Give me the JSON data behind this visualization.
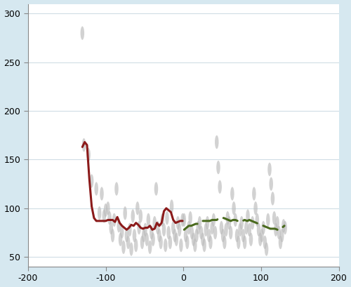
{
  "xlim": [
    -200,
    200
  ],
  "ylim": [
    40,
    310
  ],
  "xticks": [
    -200,
    -100,
    0,
    100,
    200
  ],
  "yticks": [
    50,
    100,
    150,
    200,
    250,
    300
  ],
  "outer_bg": "#d6e8f0",
  "plot_bg": "#ffffff",
  "scatter_color": "#bbbbbb",
  "scatter_alpha": 0.65,
  "red_line_color": "#8b1a1a",
  "green_line_color": "#4a6a1e",
  "red_line_x": [
    -130,
    -127,
    -124,
    -121,
    -118,
    -115,
    -112,
    -109,
    -106,
    -103,
    -100,
    -97,
    -94,
    -91,
    -88,
    -85,
    -82,
    -79,
    -76,
    -73,
    -70,
    -67,
    -64,
    -61,
    -58,
    -55,
    -52,
    -49,
    -46,
    -43,
    -40,
    -37,
    -34,
    -31,
    -28,
    -25,
    -22,
    -19,
    -16,
    -13,
    -10,
    -7,
    -4,
    -1
  ],
  "red_line_y": [
    163,
    168,
    165,
    130,
    102,
    90,
    87,
    87,
    87,
    87,
    87,
    88,
    88,
    88,
    86,
    91,
    85,
    82,
    80,
    78,
    80,
    83,
    82,
    85,
    83,
    80,
    79,
    80,
    80,
    82,
    78,
    79,
    85,
    82,
    85,
    97,
    100,
    98,
    96,
    88,
    85,
    86,
    87,
    87
  ],
  "green_line_x": [
    1,
    4,
    7,
    10,
    13,
    16,
    19,
    22,
    25,
    28,
    31,
    34,
    37,
    40,
    43,
    46,
    49,
    52,
    55,
    58,
    61,
    64,
    67,
    70,
    73,
    76,
    79,
    82,
    85,
    88,
    91,
    94,
    97,
    100,
    103,
    106,
    109,
    112,
    115,
    118,
    121,
    124,
    127,
    130
  ],
  "green_line_y": [
    78,
    80,
    82,
    82,
    83,
    84,
    84,
    86,
    87,
    87,
    87,
    87,
    88,
    88,
    88,
    90,
    90,
    90,
    89,
    88,
    87,
    88,
    88,
    87,
    88,
    87,
    88,
    87,
    88,
    87,
    86,
    85,
    84,
    83,
    82,
    81,
    80,
    79,
    79,
    79,
    78,
    78,
    80,
    82
  ],
  "scatter_points": [
    [
      -130,
      280
    ],
    [
      -128,
      165
    ],
    [
      -122,
      155
    ],
    [
      -118,
      128
    ],
    [
      -112,
      120
    ],
    [
      -108,
      95
    ],
    [
      -105,
      115
    ],
    [
      -102,
      92
    ],
    [
      -100,
      98
    ],
    [
      -97,
      100
    ],
    [
      -95,
      90
    ],
    [
      -93,
      80
    ],
    [
      -91,
      72
    ],
    [
      -89,
      88
    ],
    [
      -86,
      120
    ],
    [
      -83,
      82
    ],
    [
      -81,
      68
    ],
    [
      -79,
      76
    ],
    [
      -77,
      60
    ],
    [
      -75,
      95
    ],
    [
      -73,
      72
    ],
    [
      -71,
      65
    ],
    [
      -69,
      78
    ],
    [
      -67,
      58
    ],
    [
      -65,
      92
    ],
    [
      -63,
      72
    ],
    [
      -61,
      62
    ],
    [
      -59,
      100
    ],
    [
      -57,
      80
    ],
    [
      -55,
      92
    ],
    [
      -53,
      65
    ],
    [
      -51,
      72
    ],
    [
      -49,
      78
    ],
    [
      -47,
      68
    ],
    [
      -45,
      88
    ],
    [
      -43,
      60
    ],
    [
      -41,
      75
    ],
    [
      -39,
      68
    ],
    [
      -37,
      85
    ],
    [
      -35,
      120
    ],
    [
      -33,
      80
    ],
    [
      -31,
      72
    ],
    [
      -29,
      65
    ],
    [
      -27,
      88
    ],
    [
      -25,
      78
    ],
    [
      -23,
      62
    ],
    [
      -21,
      90
    ],
    [
      -19,
      75
    ],
    [
      -17,
      65
    ],
    [
      -15,
      102
    ],
    [
      -13,
      80
    ],
    [
      -11,
      72
    ],
    [
      -9,
      68
    ],
    [
      -7,
      85
    ],
    [
      -5,
      78
    ],
    [
      -3,
      62
    ],
    [
      -1,
      88
    ],
    [
      1,
      88
    ],
    [
      3,
      72
    ],
    [
      5,
      65
    ],
    [
      7,
      80
    ],
    [
      9,
      90
    ],
    [
      11,
      75
    ],
    [
      13,
      68
    ],
    [
      15,
      62
    ],
    [
      17,
      72
    ],
    [
      19,
      80
    ],
    [
      21,
      85
    ],
    [
      23,
      75
    ],
    [
      25,
      68
    ],
    [
      27,
      62
    ],
    [
      29,
      78
    ],
    [
      31,
      85
    ],
    [
      33,
      72
    ],
    [
      35,
      65
    ],
    [
      37,
      80
    ],
    [
      39,
      88
    ],
    [
      41,
      75
    ],
    [
      43,
      168
    ],
    [
      45,
      142
    ],
    [
      47,
      122
    ],
    [
      49,
      80
    ],
    [
      51,
      72
    ],
    [
      53,
      65
    ],
    [
      55,
      78
    ],
    [
      57,
      90
    ],
    [
      59,
      85
    ],
    [
      61,
      75
    ],
    [
      63,
      115
    ],
    [
      65,
      100
    ],
    [
      67,
      88
    ],
    [
      69,
      72
    ],
    [
      71,
      65
    ],
    [
      73,
      78
    ],
    [
      75,
      85
    ],
    [
      77,
      72
    ],
    [
      79,
      65
    ],
    [
      81,
      80
    ],
    [
      83,
      92
    ],
    [
      85,
      78
    ],
    [
      87,
      68
    ],
    [
      89,
      85
    ],
    [
      91,
      115
    ],
    [
      93,
      100
    ],
    [
      95,
      88
    ],
    [
      97,
      78
    ],
    [
      99,
      68
    ],
    [
      101,
      72
    ],
    [
      103,
      80
    ],
    [
      105,
      65
    ],
    [
      107,
      58
    ],
    [
      109,
      88
    ],
    [
      111,
      140
    ],
    [
      113,
      125
    ],
    [
      115,
      110
    ],
    [
      117,
      90
    ],
    [
      119,
      78
    ],
    [
      121,
      85
    ],
    [
      123,
      75
    ],
    [
      125,
      65
    ],
    [
      127,
      72
    ],
    [
      129,
      82
    ],
    [
      131,
      80
    ]
  ]
}
